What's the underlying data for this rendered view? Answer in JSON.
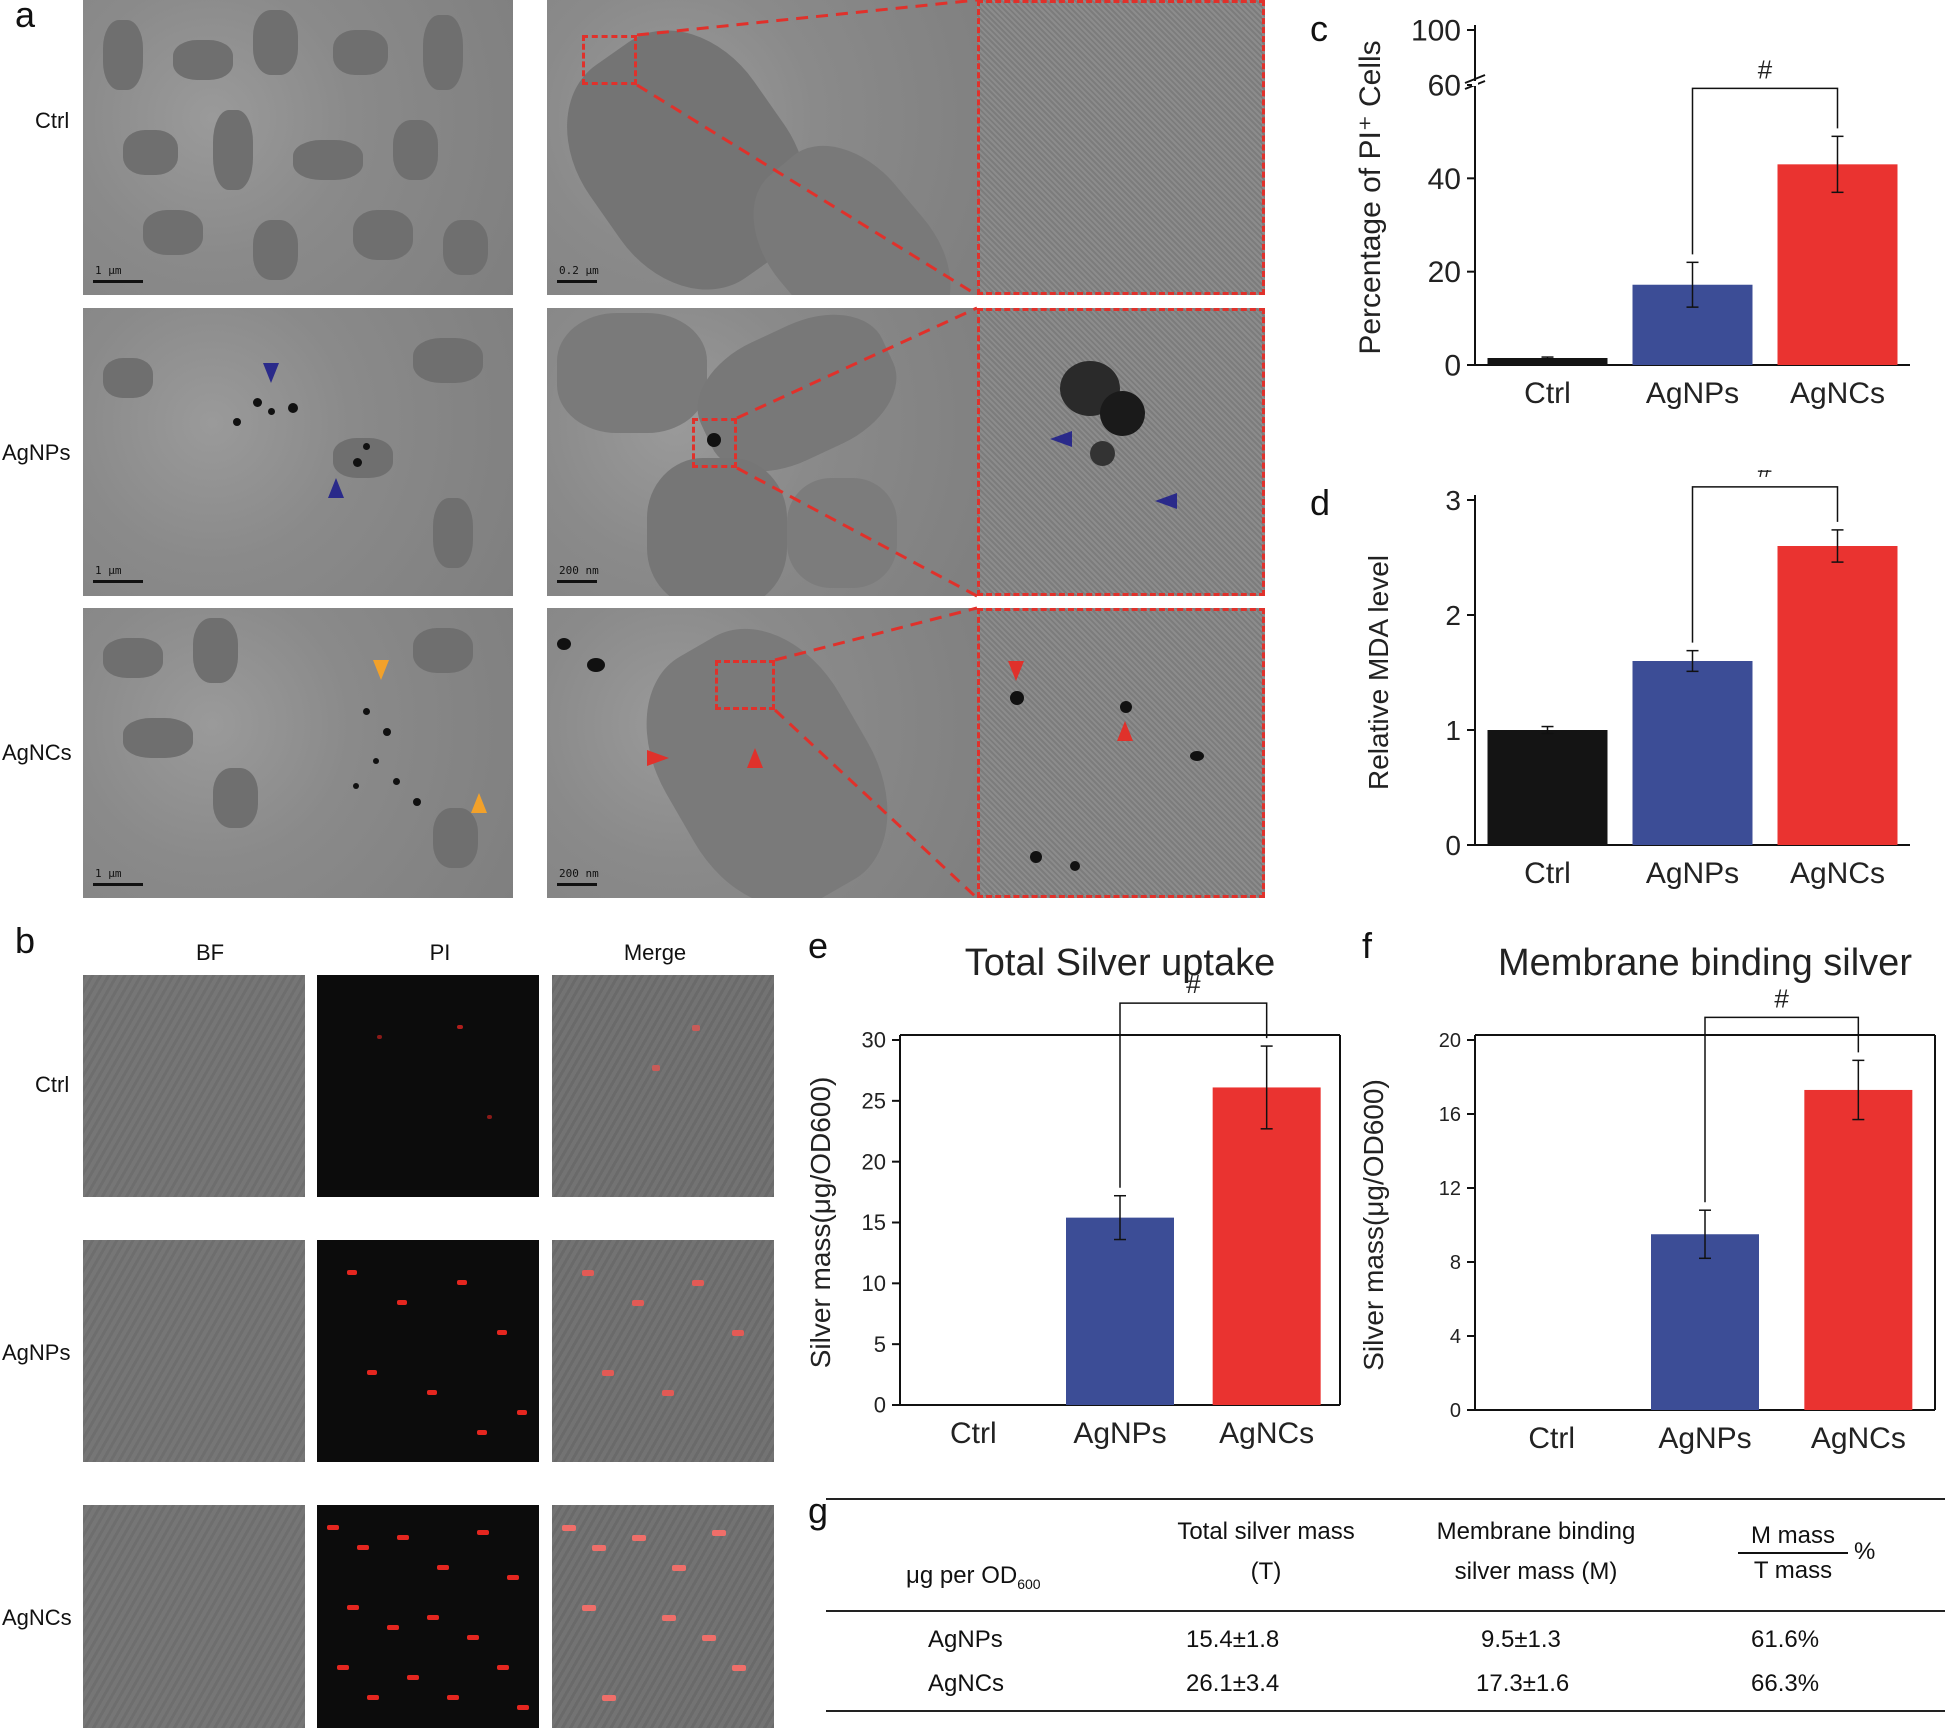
{
  "panels": {
    "a": "a",
    "b": "b",
    "c": "c",
    "d": "d",
    "e": "e",
    "f": "f",
    "g": "g"
  },
  "groups": [
    "Ctrl",
    "AgNPs",
    "AgNCs"
  ],
  "tem_scalebars": {
    "ctrl_left": "1 μm",
    "ctrl_mid": "0.2 μm",
    "agnps_left": "1 μm",
    "agnps_mid": "200 nm",
    "agncs_left": "1 μm",
    "agncs_mid": "200 nm"
  },
  "fluor_columns": [
    "BF",
    "PI",
    "Merge"
  ],
  "colors": {
    "ctrl": "#141414",
    "agnps": "#3c4d96",
    "agncs": "#ea3330",
    "highlight": "#e0312b",
    "arrow_blue": "#2a2a8a",
    "arrow_orange": "#f2a12a"
  },
  "chart_data": [
    {
      "id": "c",
      "type": "bar",
      "title": "",
      "ylabel": "Percentage of PI⁺ Cells",
      "xlabel": "",
      "categories": [
        "Ctrl",
        "AgNPs",
        "AgNCs"
      ],
      "values": [
        1.5,
        17.2,
        43.0
      ],
      "errors": [
        0.2,
        4.8,
        6.0
      ],
      "ylim": [
        0,
        100
      ],
      "axis_break": [
        60,
        100
      ],
      "yticks": [
        0,
        20,
        40,
        60,
        100
      ],
      "significance": {
        "between": [
          "AgNPs",
          "AgNCs"
        ],
        "label": "#"
      }
    },
    {
      "id": "d",
      "type": "bar",
      "title": "",
      "ylabel": "Relative MDA level",
      "xlabel": "",
      "categories": [
        "Ctrl",
        "AgNPs",
        "AgNCs"
      ],
      "values": [
        1.0,
        1.6,
        2.6
      ],
      "errors": [
        0.03,
        0.09,
        0.14
      ],
      "ylim": [
        0,
        3
      ],
      "yticks": [
        0,
        1,
        2,
        3
      ],
      "significance": {
        "between": [
          "AgNPs",
          "AgNCs"
        ],
        "label": "#"
      }
    },
    {
      "id": "e",
      "type": "bar",
      "title": "Total Silver uptake",
      "ylabel": "Silver mass(μg/OD600)",
      "xlabel": "",
      "categories": [
        "Ctrl",
        "AgNPs",
        "AgNCs"
      ],
      "values": [
        0,
        15.4,
        26.1
      ],
      "errors": [
        0,
        1.8,
        3.4
      ],
      "ylim": [
        0,
        30
      ],
      "yticks": [
        0,
        5,
        10,
        15,
        20,
        25,
        30
      ],
      "significance": {
        "between": [
          "AgNPs",
          "AgNCs"
        ],
        "label": "#"
      }
    },
    {
      "id": "f",
      "type": "bar",
      "title": "Membrane binding silver",
      "ylabel": "Silver mass(μg/OD600)",
      "xlabel": "",
      "categories": [
        "Ctrl",
        "AgNPs",
        "AgNCs"
      ],
      "values": [
        0,
        9.5,
        17.3
      ],
      "errors": [
        0,
        1.3,
        1.6
      ],
      "ylim": [
        0,
        20
      ],
      "yticks": [
        0,
        4,
        8,
        12,
        16,
        20
      ],
      "significance": {
        "between": [
          "AgNPs",
          "AgNCs"
        ],
        "label": "#"
      }
    }
  ],
  "table_g": {
    "header": {
      "col1": "μg per OD",
      "col1_sub": "600",
      "col2_line1": "Total silver mass",
      "col2_line2": "(T)",
      "col3_line1": "Membrane binding",
      "col3_line2": "silver mass (M)",
      "col4_num": "M mass",
      "col4_den": "T mass",
      "col4_pct": "%"
    },
    "rows": [
      {
        "name": "AgNPs",
        "total": "15.4±1.8",
        "membrane": "9.5±1.3",
        "ratio": "61.6%"
      },
      {
        "name": "AgNCs",
        "total": "26.1±3.4",
        "membrane": "17.3±1.6",
        "ratio": "66.3%"
      }
    ]
  }
}
